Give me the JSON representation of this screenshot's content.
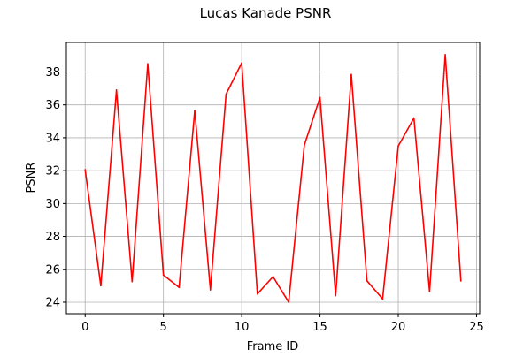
{
  "chart_data": {
    "type": "line",
    "title": "Lucas Kanade PSNR",
    "xlabel": "Frame ID",
    "ylabel": "PSNR",
    "xlim": [
      -1.2,
      25.2
    ],
    "ylim": [
      23.3,
      39.8
    ],
    "xticks": [
      0,
      5,
      10,
      15,
      20,
      25
    ],
    "yticks": [
      24,
      26,
      28,
      30,
      32,
      34,
      36,
      38
    ],
    "grid": true,
    "series": [
      {
        "color": "#ff0000",
        "x": [
          0,
          1,
          2,
          3,
          4,
          5,
          6,
          7,
          8,
          9,
          10,
          11,
          12,
          13,
          14,
          15,
          16,
          17,
          18,
          19,
          20,
          21,
          22,
          23,
          24
        ],
        "y": [
          32.05,
          25.0,
          36.9,
          25.25,
          38.5,
          25.65,
          24.9,
          35.65,
          24.75,
          36.65,
          38.55,
          24.5,
          25.55,
          24.0,
          33.55,
          36.45,
          24.4,
          37.85,
          25.3,
          24.2,
          33.5,
          35.2,
          24.65,
          39.05,
          25.3
        ]
      }
    ]
  }
}
